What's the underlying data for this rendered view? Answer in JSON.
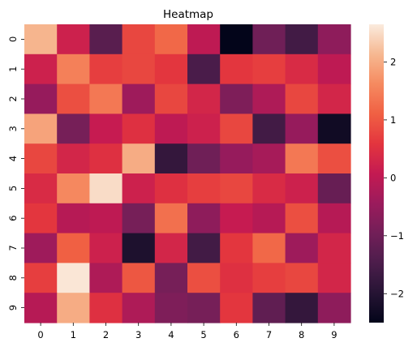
{
  "chart_data": {
    "type": "heatmap",
    "title": "Heatmap",
    "x_labels": [
      "0",
      "1",
      "2",
      "3",
      "4",
      "5",
      "6",
      "7",
      "8",
      "9"
    ],
    "y_labels": [
      "0",
      "1",
      "2",
      "3",
      "4",
      "5",
      "6",
      "7",
      "8",
      "9"
    ],
    "values": [
      [
        2.1,
        0.2,
        -1.3,
        0.8,
        1.2,
        0.0,
        -2.5,
        -1.0,
        -1.6,
        -0.6
      ],
      [
        0.2,
        1.5,
        0.7,
        0.8,
        0.6,
        -1.5,
        0.6,
        0.7,
        0.4,
        0.0
      ],
      [
        -0.5,
        0.9,
        1.4,
        -0.4,
        0.8,
        0.3,
        -0.8,
        -0.2,
        0.8,
        0.3
      ],
      [
        1.9,
        -0.9,
        0.1,
        0.5,
        0.0,
        0.2,
        0.8,
        -1.6,
        -0.5,
        -2.3
      ],
      [
        0.8,
        0.3,
        0.5,
        2.0,
        -1.8,
        -1.0,
        -0.5,
        -0.3,
        1.4,
        0.9
      ],
      [
        0.4,
        1.6,
        2.5,
        0.2,
        0.5,
        0.7,
        0.8,
        0.4,
        0.2,
        -1.1
      ],
      [
        0.6,
        -0.1,
        0.0,
        -0.9,
        1.3,
        -0.6,
        0.1,
        -0.1,
        0.9,
        -0.1
      ],
      [
        -0.4,
        1.1,
        0.2,
        -2.1,
        0.3,
        -1.6,
        0.6,
        1.2,
        -0.4,
        0.3
      ],
      [
        0.7,
        2.6,
        -0.2,
        1.0,
        -0.9,
        0.9,
        0.5,
        0.7,
        0.8,
        0.3
      ],
      [
        -0.1,
        2.0,
        0.5,
        -0.2,
        -0.8,
        -0.9,
        0.6,
        -1.2,
        -1.8,
        -0.6
      ]
    ],
    "vmin": -2.5,
    "vmax": 2.65,
    "colorbar": {
      "ticks": [
        -2,
        -1,
        0,
        1,
        2
      ],
      "tick_labels": [
        "−2",
        "−1",
        "0",
        "1",
        "2"
      ]
    },
    "colormap": "rocket"
  }
}
